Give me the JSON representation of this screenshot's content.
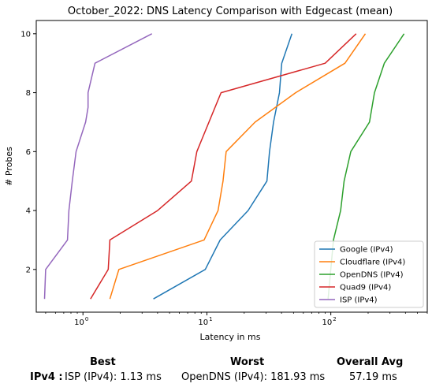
{
  "chart_data": {
    "type": "line",
    "title": "October_2022: DNS Latency Comparison with Edgecast (mean)",
    "xlabel": "Latency in ms",
    "ylabel": "# Probes",
    "xscale": "log",
    "xlim": [
      0.42,
      600
    ],
    "ylim": [
      0.55,
      10.45
    ],
    "xticks": [
      {
        "value": 1,
        "label": "10",
        "exp": "0"
      },
      {
        "value": 10,
        "label": "10",
        "exp": "1"
      },
      {
        "value": 100,
        "label": "10",
        "exp": "2"
      }
    ],
    "yticks": [
      2,
      4,
      6,
      8,
      10
    ],
    "legend_position": "lower-right",
    "grid": false,
    "series": [
      {
        "name": "Google (IPv4)",
        "color": "#1f77b4",
        "x": [
          3.7,
          9.7,
          12.8,
          21.5,
          30.5,
          32.0,
          34.5,
          38.5,
          39.5,
          40.2,
          48.5
        ],
        "y": [
          1,
          2,
          3,
          4,
          5,
          6,
          7,
          8,
          8.6,
          9,
          10
        ]
      },
      {
        "name": "Cloudflare (IPv4)",
        "color": "#ff7f0e",
        "x": [
          1.65,
          1.95,
          9.5,
          12.3,
          13.5,
          14.3,
          24.5,
          52.0,
          130.0,
          190.0
        ],
        "y": [
          1,
          2,
          3,
          4,
          5,
          6,
          7,
          8,
          9,
          10
        ]
      },
      {
        "name": "OpenDNS (IPv4)",
        "color": "#2ca02c",
        "x": [
          95.0,
          105.0,
          120.0,
          128.0,
          145.0,
          205.0,
          225.0,
          270.0,
          390.0
        ],
        "y": [
          1,
          3,
          4,
          5,
          6,
          7,
          8,
          9,
          10
        ]
      },
      {
        "name": "Quad9 (IPv4)",
        "color": "#d62728",
        "x": [
          1.15,
          1.6,
          1.65,
          4.0,
          7.5,
          8.3,
          13.0,
          90.0,
          160.0
        ],
        "y": [
          1,
          2,
          3,
          4,
          5,
          6,
          8,
          9,
          10
        ]
      },
      {
        "name": "ISP (IPv4)",
        "color": "#9467bd",
        "x": [
          0.49,
          0.5,
          0.75,
          0.77,
          0.82,
          0.88,
          1.05,
          1.1,
          1.1,
          1.25,
          3.6
        ],
        "y": [
          1,
          2,
          3,
          4,
          5,
          6,
          7,
          7.5,
          8,
          9,
          10
        ]
      }
    ]
  },
  "summary": {
    "headers": {
      "best": "Best",
      "worst": "Worst",
      "overall_avg": "Overall Avg"
    },
    "rows": [
      {
        "label": "IPv4 :",
        "best": "ISP (IPv4): 1.13 ms",
        "worst": "OpenDNS (IPv4): 181.93 ms",
        "overall_avg": "57.19 ms"
      }
    ]
  }
}
